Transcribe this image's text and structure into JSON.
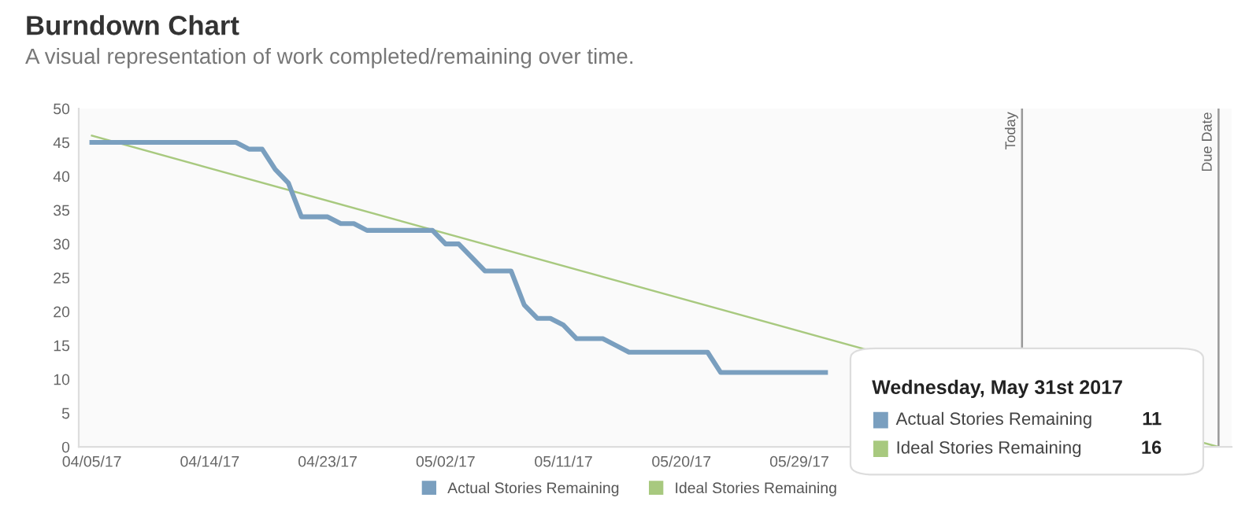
{
  "chart_data": {
    "type": "line",
    "title": "Burndown Chart",
    "subtitle": "A visual representation of work completed/remaining over time.",
    "xlim": [
      "2017-04-04",
      "2017-07-01"
    ],
    "ylim": [
      0,
      50
    ],
    "yticks": [
      0,
      5,
      10,
      15,
      20,
      25,
      30,
      35,
      40,
      45,
      50
    ],
    "xticks": [
      {
        "value": "2017-04-05",
        "label": "04/05/17"
      },
      {
        "value": "2017-04-14",
        "label": "04/14/17"
      },
      {
        "value": "2017-04-23",
        "label": "04/23/17"
      },
      {
        "value": "2017-05-02",
        "label": "05/02/17"
      },
      {
        "value": "2017-05-11",
        "label": "05/11/17"
      },
      {
        "value": "2017-05-20",
        "label": "05/20/17"
      },
      {
        "value": "2017-05-29",
        "label": "05/29/17"
      }
    ],
    "series": [
      {
        "name": "Actual Stories Remaining",
        "color": "#7a9fbf",
        "x": [
          "2017-04-05",
          "2017-04-16",
          "2017-04-17",
          "2017-04-18",
          "2017-04-19",
          "2017-04-20",
          "2017-04-21",
          "2017-04-23",
          "2017-04-24",
          "2017-04-25",
          "2017-04-26",
          "2017-05-01",
          "2017-05-02",
          "2017-05-03",
          "2017-05-05",
          "2017-05-07",
          "2017-05-08",
          "2017-05-09",
          "2017-05-10",
          "2017-05-11",
          "2017-05-12",
          "2017-05-14",
          "2017-05-15",
          "2017-05-16",
          "2017-05-22",
          "2017-05-23",
          "2017-05-31"
        ],
        "values": [
          45,
          45,
          44,
          44,
          41,
          39,
          34,
          34,
          33,
          33,
          32,
          32,
          30,
          30,
          26,
          26,
          21,
          19,
          19,
          18,
          16,
          16,
          15,
          14,
          14,
          11,
          11
        ]
      },
      {
        "name": "Ideal Stories Remaining",
        "color": "#a8c97f",
        "x": [
          "2017-04-05",
          "2017-06-30"
        ],
        "values": [
          46,
          0
        ]
      }
    ],
    "ref_lines": [
      {
        "axis": "x",
        "value": "2017-06-15",
        "label": "Today",
        "color": "#999999"
      },
      {
        "axis": "x",
        "value": "2017-06-30",
        "label": "Due Date",
        "color": "#999999"
      }
    ],
    "annotations": [
      "Wednesday, May 31st 2017",
      "Actual Stories Remaining",
      "11",
      "Ideal Stories Remaining",
      "16"
    ],
    "legend": "bottom",
    "grid": false,
    "marker": "none",
    "line_style": "solid"
  }
}
